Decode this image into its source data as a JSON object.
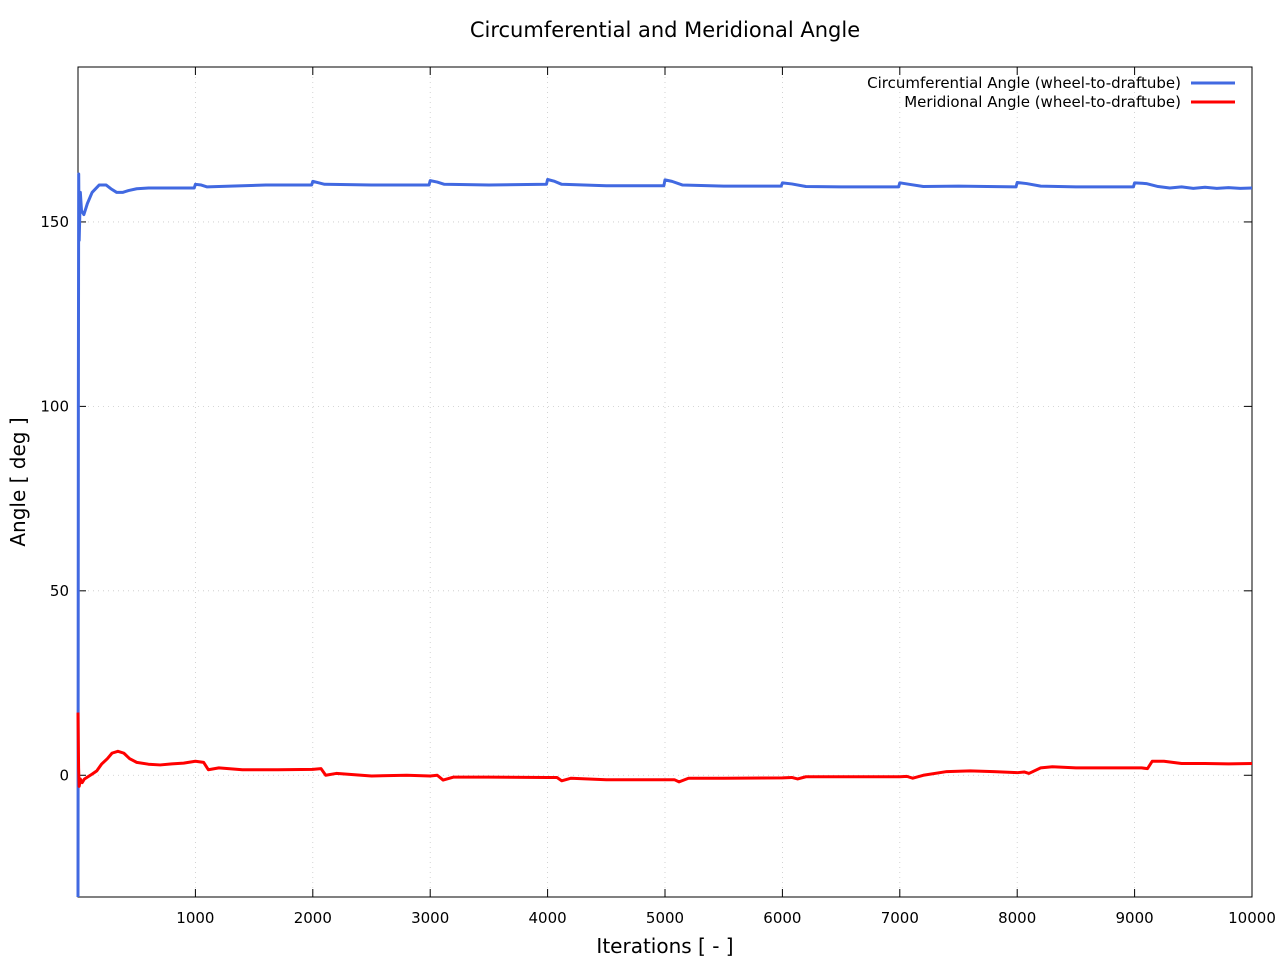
{
  "chart_data": {
    "type": "line",
    "title": "Circumferential and Meridional Angle",
    "xlabel": "Iterations [ - ]",
    "ylabel": "Angle [ deg ]",
    "xlim": [
      0,
      10000
    ],
    "ylim": [
      -33,
      192
    ],
    "x_ticks": [
      1000,
      2000,
      3000,
      4000,
      5000,
      6000,
      7000,
      8000,
      9000,
      10000
    ],
    "y_ticks": [
      0,
      50,
      100,
      150
    ],
    "grid": true,
    "legend_position": "top-right",
    "series": [
      {
        "name": "Circumferential Angle (wheel-to-draftube)",
        "color": "#4169e1",
        "points": [
          [
            0,
            -33
          ],
          [
            3,
            100
          ],
          [
            6,
            163
          ],
          [
            10,
            145
          ],
          [
            20,
            158
          ],
          [
            30,
            153
          ],
          [
            50,
            152
          ],
          [
            80,
            155
          ],
          [
            120,
            158
          ],
          [
            180,
            160
          ],
          [
            240,
            160
          ],
          [
            280,
            159
          ],
          [
            330,
            158
          ],
          [
            380,
            158
          ],
          [
            430,
            158.5
          ],
          [
            500,
            159
          ],
          [
            600,
            159.2
          ],
          [
            800,
            159.2
          ],
          [
            990,
            159.2
          ],
          [
            1000,
            160.2
          ],
          [
            1050,
            160
          ],
          [
            1100,
            159.5
          ],
          [
            1300,
            159.7
          ],
          [
            1600,
            160
          ],
          [
            1990,
            160
          ],
          [
            2000,
            161
          ],
          [
            2050,
            160.6
          ],
          [
            2100,
            160.2
          ],
          [
            2500,
            160
          ],
          [
            2990,
            160
          ],
          [
            3000,
            161.2
          ],
          [
            3060,
            160.8
          ],
          [
            3120,
            160.2
          ],
          [
            3500,
            160
          ],
          [
            3990,
            160.2
          ],
          [
            4000,
            161.5
          ],
          [
            4060,
            161
          ],
          [
            4120,
            160.2
          ],
          [
            4500,
            159.8
          ],
          [
            4990,
            159.8
          ],
          [
            5000,
            161.4
          ],
          [
            5060,
            161
          ],
          [
            5150,
            160
          ],
          [
            5500,
            159.7
          ],
          [
            5990,
            159.7
          ],
          [
            6000,
            160.6
          ],
          [
            6080,
            160.3
          ],
          [
            6200,
            159.6
          ],
          [
            6500,
            159.5
          ],
          [
            6990,
            159.5
          ],
          [
            7000,
            160.6
          ],
          [
            7080,
            160.2
          ],
          [
            7200,
            159.6
          ],
          [
            7500,
            159.7
          ],
          [
            7990,
            159.5
          ],
          [
            8000,
            160.7
          ],
          [
            8080,
            160.4
          ],
          [
            8200,
            159.7
          ],
          [
            8500,
            159.5
          ],
          [
            8990,
            159.5
          ],
          [
            9000,
            160.6
          ],
          [
            9100,
            160.4
          ],
          [
            9200,
            159.6
          ],
          [
            9300,
            159.2
          ],
          [
            9400,
            159.5
          ],
          [
            9500,
            159.1
          ],
          [
            9600,
            159.4
          ],
          [
            9700,
            159.1
          ],
          [
            9800,
            159.3
          ],
          [
            9900,
            159.1
          ],
          [
            10000,
            159.2
          ]
        ]
      },
      {
        "name": "Meridional Angle (wheel-to-draftube)",
        "color": "#ff0000",
        "points": [
          [
            0,
            17
          ],
          [
            5,
            2
          ],
          [
            10,
            -3
          ],
          [
            20,
            -1
          ],
          [
            35,
            -2
          ],
          [
            55,
            -1
          ],
          [
            80,
            -0.5
          ],
          [
            120,
            0.3
          ],
          [
            160,
            1.2
          ],
          [
            200,
            3
          ],
          [
            250,
            4.5
          ],
          [
            290,
            6
          ],
          [
            340,
            6.5
          ],
          [
            390,
            6
          ],
          [
            440,
            4.5
          ],
          [
            500,
            3.5
          ],
          [
            600,
            3
          ],
          [
            700,
            2.8
          ],
          [
            800,
            3.1
          ],
          [
            900,
            3.3
          ],
          [
            1000,
            3.8
          ],
          [
            1070,
            3.5
          ],
          [
            1110,
            1.5
          ],
          [
            1200,
            2
          ],
          [
            1400,
            1.5
          ],
          [
            1700,
            1.5
          ],
          [
            2000,
            1.6
          ],
          [
            2070,
            1.8
          ],
          [
            2110,
            0
          ],
          [
            2200,
            0.5
          ],
          [
            2500,
            -0.2
          ],
          [
            2800,
            0
          ],
          [
            3000,
            -0.2
          ],
          [
            3060,
            0
          ],
          [
            3110,
            -1.3
          ],
          [
            3200,
            -0.5
          ],
          [
            3500,
            -0.5
          ],
          [
            4000,
            -0.6
          ],
          [
            4080,
            -0.6
          ],
          [
            4120,
            -1.5
          ],
          [
            4200,
            -0.8
          ],
          [
            4500,
            -1.2
          ],
          [
            5000,
            -1.2
          ],
          [
            5080,
            -1.2
          ],
          [
            5120,
            -1.8
          ],
          [
            5200,
            -0.8
          ],
          [
            5500,
            -0.8
          ],
          [
            6000,
            -0.7
          ],
          [
            6080,
            -0.6
          ],
          [
            6130,
            -1
          ],
          [
            6200,
            -0.4
          ],
          [
            6500,
            -0.4
          ],
          [
            7000,
            -0.4
          ],
          [
            7060,
            -0.3
          ],
          [
            7110,
            -0.8
          ],
          [
            7200,
            0
          ],
          [
            7400,
            1
          ],
          [
            7600,
            1.2
          ],
          [
            7800,
            1
          ],
          [
            8000,
            0.7
          ],
          [
            8060,
            0.9
          ],
          [
            8100,
            0.5
          ],
          [
            8200,
            2
          ],
          [
            8300,
            2.3
          ],
          [
            8500,
            2
          ],
          [
            8800,
            2
          ],
          [
            9000,
            2
          ],
          [
            9060,
            2
          ],
          [
            9110,
            1.8
          ],
          [
            9150,
            3.8
          ],
          [
            9250,
            3.8
          ],
          [
            9400,
            3.2
          ],
          [
            9600,
            3.2
          ],
          [
            9800,
            3.1
          ],
          [
            10000,
            3.2
          ]
        ]
      }
    ]
  }
}
